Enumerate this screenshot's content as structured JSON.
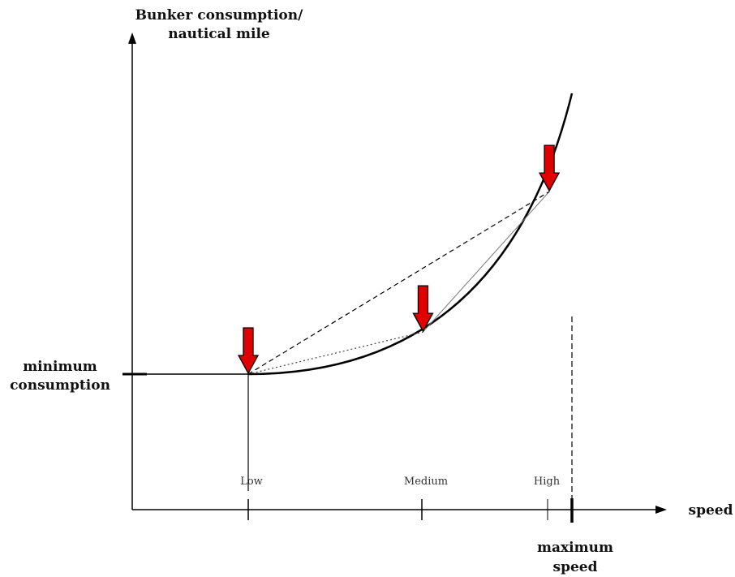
{
  "chart_data": {
    "type": "line",
    "title": "",
    "ylabel_lines": [
      "Bunker consumption/",
      "nautical mile"
    ],
    "xlabel": "speed",
    "y_marker_label_lines": [
      "minimum",
      "consumption"
    ],
    "max_speed_label_lines": [
      "maximum",
      "speed"
    ],
    "categories": [
      "Low",
      "Medium",
      "High"
    ],
    "curve_name": "",
    "points": [
      {
        "name": "Low",
        "relative_speed": 0.0,
        "relative_consumption": 0.0
      },
      {
        "name": "Medium",
        "relative_speed": 0.54,
        "relative_consumption": 0.15
      },
      {
        "name": "High",
        "relative_speed": 0.93,
        "relative_consumption": 0.65
      }
    ],
    "highlighted_points": [
      "Low",
      "Medium",
      "High"
    ],
    "connectors": [
      {
        "from": "Low",
        "to": "Medium",
        "style": "dotted"
      },
      {
        "from": "Medium",
        "to": "High",
        "style": "thin-solid"
      },
      {
        "from": "Low",
        "to": "High",
        "style": "dashed"
      }
    ],
    "arrow_color": "#e00000",
    "line_color": "#000000",
    "grid": false,
    "legend": "none"
  }
}
